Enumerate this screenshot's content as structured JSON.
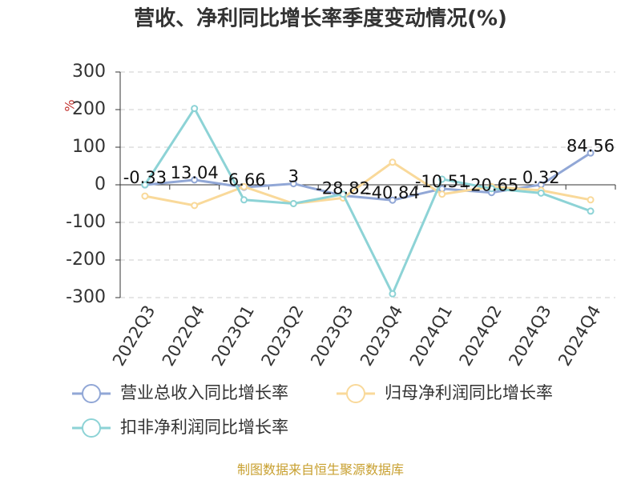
{
  "chart_data": {
    "type": "line",
    "title": "营收、净利同比增长率季度变动情况(%)",
    "y_label": "%",
    "source": "制图数据来自恒生聚源数据库",
    "categories": [
      "2022Q3",
      "2022Q4",
      "2023Q1",
      "2023Q2",
      "2023Q3",
      "2023Q4",
      "2024Q1",
      "2024Q2",
      "2024Q3",
      "2024Q4"
    ],
    "series": [
      {
        "name": "营业总收入同比增长率",
        "color": "#91a7d6",
        "values": [
          -0.33,
          13.04,
          -6.66,
          3,
          -28.82,
          -40.84,
          -10.51,
          -20.65,
          0.32,
          84.56
        ]
      },
      {
        "name": "归母净利润同比增长率",
        "color": "#f9d99a",
        "values": [
          -30,
          -55,
          -5,
          -50,
          -35,
          60,
          -25,
          -5,
          -15,
          -40
        ]
      },
      {
        "name": "扣非净利润同比增长率",
        "color": "#8dd3d6",
        "values": [
          0,
          203,
          -40,
          -50,
          -25,
          -290,
          15,
          -10,
          -22,
          -70
        ]
      }
    ],
    "ylim": [
      -300,
      300
    ],
    "yticks": [
      -300,
      -200,
      -100,
      0,
      100,
      200,
      300
    ],
    "grid": true
  }
}
